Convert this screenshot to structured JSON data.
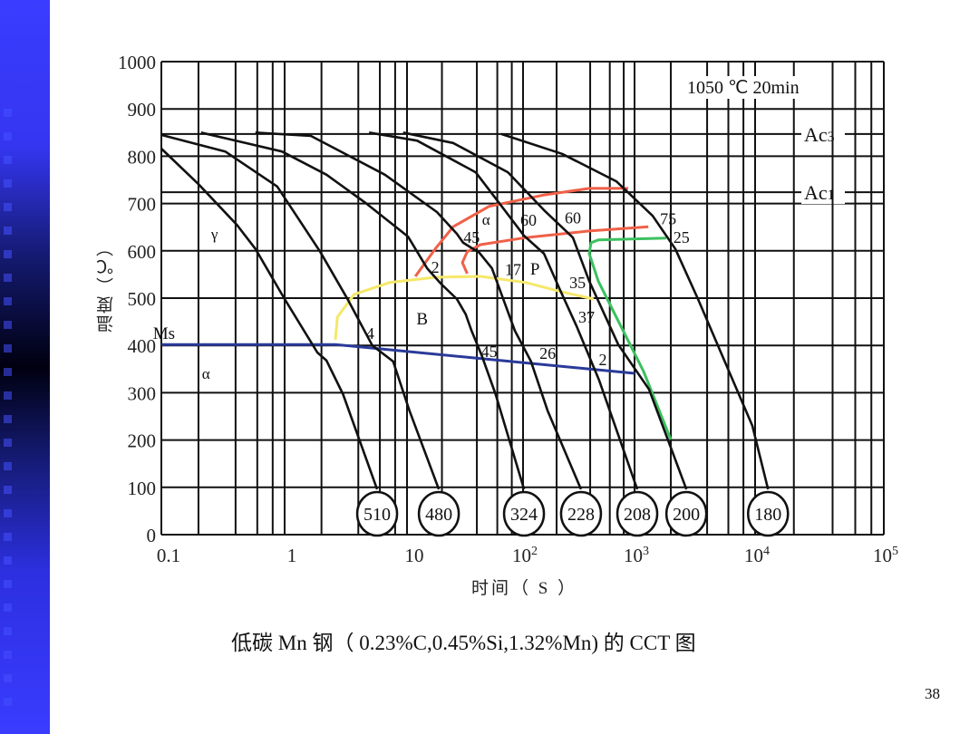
{
  "slide": {
    "caption": "低碳 Mn 钢（ 0.23%C,0.45%Si,1.32%Mn) 的 CCT 图",
    "page_number": "38",
    "sidebar_color": "#3a3cff"
  },
  "chart_data": {
    "type": "line",
    "title": "",
    "xlabel": "时间（ S ）",
    "ylabel": "温度（℃）",
    "x_scale": "log",
    "xlim": [
      0.1,
      100000
    ],
    "ylim": [
      0,
      1000
    ],
    "grid": true,
    "condition": "1050 ℃ 20min",
    "x_ticks": [
      {
        "base": "0.1",
        "exp": "",
        "value": 0.1
      },
      {
        "base": "1",
        "exp": "",
        "value": 1
      },
      {
        "base": "10",
        "exp": "",
        "value": 10
      },
      {
        "base": "10",
        "exp": "2",
        "value": 100
      },
      {
        "base": "10",
        "exp": "3",
        "value": 1000
      },
      {
        "base": "10",
        "exp": "4",
        "value": 10000
      },
      {
        "base": "10",
        "exp": "5",
        "value": 100000
      }
    ],
    "y_ticks": [
      "0",
      "100",
      "200",
      "300",
      "400",
      "500",
      "600",
      "700",
      "800",
      "900",
      "1000"
    ],
    "critical_lines": [
      {
        "name": "Ac3",
        "main": "Ac",
        "sub": "3",
        "value": 847
      },
      {
        "name": "Ac1",
        "main": "Ac",
        "sub": "1",
        "value": 724
      }
    ],
    "cooling_curves": [
      {
        "label": "510",
        "points": [
          [
            0.1,
            816
          ],
          [
            0.2,
            741
          ],
          [
            0.41,
            655
          ],
          [
            0.58,
            604
          ],
          [
            1.0,
            498
          ],
          [
            1.85,
            385
          ],
          [
            2.2,
            368
          ],
          [
            3.0,
            297
          ],
          [
            5.7,
            96
          ]
        ]
      },
      {
        "label": "480",
        "points": [
          [
            0.1,
            845
          ],
          [
            0.33,
            810
          ],
          [
            0.87,
            736
          ],
          [
            1.95,
            598
          ],
          [
            3.3,
            496
          ],
          [
            5.2,
            400
          ],
          [
            7.7,
            366
          ],
          [
            10.5,
            262
          ],
          [
            18.8,
            96
          ]
        ]
      },
      {
        "label": "324",
        "points": [
          [
            0.21,
            850
          ],
          [
            0.95,
            810
          ],
          [
            2.2,
            761
          ],
          [
            4.6,
            701
          ],
          [
            10.2,
            630
          ],
          [
            14.9,
            563
          ],
          [
            19.5,
            531
          ],
          [
            26.9,
            498
          ],
          [
            32,
            466
          ],
          [
            36,
            431
          ],
          [
            44,
            379
          ],
          [
            58,
            297
          ],
          [
            102,
            96
          ]
        ]
      },
      {
        "label": "228",
        "points": [
          [
            0.58,
            850
          ],
          [
            1.64,
            843
          ],
          [
            6.6,
            761
          ],
          [
            18.1,
            682
          ],
          [
            26.9,
            636
          ],
          [
            30.5,
            617
          ],
          [
            42,
            596
          ],
          [
            54,
            563
          ],
          [
            61.5,
            525
          ],
          [
            85,
            431
          ],
          [
            118,
            366
          ],
          [
            166,
            262
          ],
          [
            331,
            96
          ]
        ]
      },
      {
        "label": "208",
        "points": [
          [
            4.9,
            850
          ],
          [
            12.2,
            833
          ],
          [
            39,
            766
          ],
          [
            65,
            695
          ],
          [
            102,
            632
          ],
          [
            154,
            594
          ],
          [
            215,
            517
          ],
          [
            302,
            441
          ],
          [
            482,
            326
          ],
          [
            1054,
            96
          ]
        ]
      },
      {
        "label": "200",
        "points": [
          [
            9.3,
            850
          ],
          [
            25,
            828
          ],
          [
            74,
            766
          ],
          [
            154,
            686
          ],
          [
            280,
            628
          ],
          [
            392,
            536
          ],
          [
            714,
            402
          ],
          [
            1320,
            307
          ],
          [
            2690,
            96
          ]
        ]
      },
      {
        "label": "180",
        "points": [
          [
            65,
            847
          ],
          [
            224,
            805
          ],
          [
            687,
            747
          ],
          [
            1413,
            674
          ],
          [
            2180,
            604
          ],
          [
            3360,
            498
          ],
          [
            5650,
            364
          ],
          [
            9500,
            230
          ],
          [
            12600,
            96
          ]
        ]
      }
    ],
    "transformation_lines": [
      {
        "name": "ferrite-start",
        "color": "#f06048",
        "points": [
          [
            11.8,
            546
          ],
          [
            17.5,
            604
          ],
          [
            25,
            651
          ],
          [
            51,
            694
          ],
          [
            154,
            718
          ],
          [
            392,
            732
          ],
          [
            877,
            732
          ]
        ]
      },
      {
        "name": "pearlite-start",
        "color": "#f06048",
        "points": [
          [
            33,
            552
          ],
          [
            30,
            575
          ],
          [
            33,
            598
          ],
          [
            43,
            613
          ],
          [
            106,
            628
          ],
          [
            392,
            642
          ],
          [
            1300,
            651
          ]
        ]
      },
      {
        "name": "bainite-start",
        "color": "#f5e86a",
        "points": [
          [
            2.6,
            412
          ],
          [
            2.7,
            460
          ],
          [
            3.7,
            508
          ],
          [
            7.2,
            533
          ],
          [
            17.5,
            544
          ],
          [
            43,
            546
          ],
          [
            106,
            533
          ],
          [
            224,
            513
          ],
          [
            431,
            498
          ]
        ]
      },
      {
        "name": "transformation-end",
        "color": "#3cc060",
        "points": [
          [
            1830,
            627
          ],
          [
            473,
            623
          ],
          [
            407,
            617
          ],
          [
            392,
            594
          ],
          [
            473,
            536
          ],
          [
            687,
            460
          ],
          [
            1190,
            345
          ],
          [
            2000,
            201
          ]
        ]
      },
      {
        "name": "Ms",
        "color": "#2a3a9a",
        "points": [
          [
            0.1,
            402
          ],
          [
            2.6,
            402
          ],
          [
            1000,
            341
          ]
        ]
      }
    ],
    "annotations": [
      {
        "text": "Ms",
        "x": 0.105,
        "y": 425,
        "size": 19
      },
      {
        "text": "γ",
        "x": 0.27,
        "y": 636,
        "size": 17
      },
      {
        "text": "α",
        "x": 0.23,
        "y": 341,
        "size": 17
      },
      {
        "text": "α",
        "x": 48,
        "y": 667,
        "size": 17
      },
      {
        "text": "B",
        "x": 13.5,
        "y": 456,
        "size": 19
      },
      {
        "text": "P",
        "x": 128,
        "y": 561,
        "size": 19
      },
      {
        "text": "2",
        "x": 17.5,
        "y": 565,
        "size": 18
      },
      {
        "text": "45",
        "x": 36,
        "y": 628,
        "size": 18
      },
      {
        "text": "60",
        "x": 112,
        "y": 665,
        "size": 18
      },
      {
        "text": "60",
        "x": 280,
        "y": 670,
        "size": 18
      },
      {
        "text": "75",
        "x": 1900,
        "y": 668,
        "size": 18
      },
      {
        "text": "25",
        "x": 2450,
        "y": 628,
        "size": 18
      },
      {
        "text": "17",
        "x": 82,
        "y": 560,
        "size": 18
      },
      {
        "text": "35",
        "x": 308,
        "y": 533,
        "size": 18
      },
      {
        "text": "37",
        "x": 371,
        "y": 460,
        "size": 18
      },
      {
        "text": "4",
        "x": 5.0,
        "y": 425,
        "size": 18
      },
      {
        "text": "45",
        "x": 51,
        "y": 387,
        "size": 18
      },
      {
        "text": "26",
        "x": 166,
        "y": 383,
        "size": 18
      },
      {
        "text": "2",
        "x": 519,
        "y": 370,
        "size": 18
      }
    ]
  }
}
